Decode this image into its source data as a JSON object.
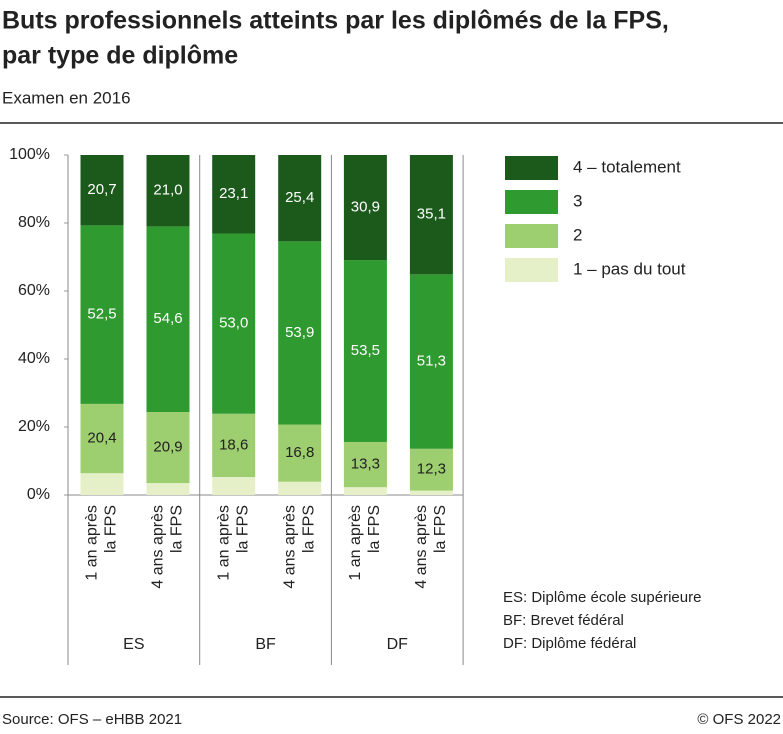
{
  "chart_data": {
    "type": "stacked-bar",
    "title": [
      "Buts professionnels atteints par les diplômés de la FPS,",
      "par type de diplôme"
    ],
    "subtitle": "Examen en 2016",
    "categories": [
      [
        "1 an après",
        "la FPS"
      ],
      [
        "4 ans après",
        "la FPS"
      ],
      [
        "1 an après",
        "la FPS"
      ],
      [
        "4 ans après",
        "la FPS"
      ],
      [
        "1 an après",
        "la FPS"
      ],
      [
        "4 ans après",
        "la FPS"
      ]
    ],
    "groups": [
      "ES",
      "BF",
      "DF"
    ],
    "series": [
      {
        "name": "4 – totalement",
        "color": "#1c5a1c",
        "values": [
          20.7,
          21.0,
          23.1,
          25.4,
          30.9,
          35.1
        ],
        "value_labels": [
          "20,7",
          "21,0",
          "23,1",
          "25,4",
          "30,9",
          "35,1"
        ]
      },
      {
        "name": "3",
        "color": "#2f9a2f",
        "values": [
          52.5,
          54.6,
          53.0,
          53.9,
          53.5,
          51.3
        ],
        "value_labels": [
          "52,5",
          "54,6",
          "53,0",
          "53,9",
          "53,5",
          "51,3"
        ]
      },
      {
        "name": "2",
        "color": "#9dce6f",
        "values": [
          20.4,
          20.9,
          18.6,
          16.8,
          13.3,
          12.3
        ],
        "value_labels": [
          "20,4",
          "20,9",
          "18,6",
          "16,8",
          "13,3",
          "12,3"
        ]
      },
      {
        "name": "1 – pas du tout",
        "color": "#e6f0c8",
        "values": [
          6.4,
          3.5,
          5.3,
          3.9,
          2.3,
          1.3
        ]
      }
    ],
    "ylim": [
      0,
      100
    ],
    "yticks": [
      {
        "value": 0,
        "label": "0%"
      },
      {
        "value": 20,
        "label": "20%"
      },
      {
        "value": 40,
        "label": "40%"
      },
      {
        "value": 60,
        "label": "60%"
      },
      {
        "value": 80,
        "label": "80%"
      },
      {
        "value": 100,
        "label": "100%"
      }
    ],
    "notes": [
      "ES: Diplôme école supérieure",
      "BF: Brevet fédéral",
      "DF: Diplôme fédéral"
    ],
    "source": "Source: OFS – eHBB 2021",
    "copyright": "© OFS 2022"
  }
}
